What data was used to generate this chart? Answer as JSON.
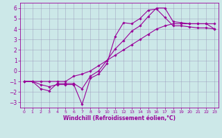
{
  "title": "",
  "xlabel": "Windchill (Refroidissement éolien,°C)",
  "background_color": "#cce8e8",
  "line_color": "#990099",
  "xlim": [
    -0.5,
    23.5
  ],
  "ylim": [
    -3.5,
    6.5
  ],
  "xticks": [
    0,
    1,
    2,
    3,
    4,
    5,
    6,
    7,
    8,
    9,
    10,
    11,
    12,
    13,
    14,
    15,
    16,
    17,
    18,
    19,
    20,
    21,
    22,
    23
  ],
  "yticks": [
    -3,
    -2,
    -1,
    0,
    1,
    2,
    3,
    4,
    5,
    6
  ],
  "line1_x": [
    0,
    1,
    2,
    3,
    4,
    5,
    6,
    7,
    8,
    9,
    10,
    11,
    12,
    13,
    14,
    15,
    16,
    17,
    18,
    19,
    20,
    21,
    22,
    23
  ],
  "line1_y": [
    -1,
    -1,
    -1.3,
    -1.5,
    -1.3,
    -1.3,
    -1.3,
    -3.2,
    -0.7,
    -0.3,
    0.7,
    3.3,
    4.6,
    4.5,
    5.0,
    5.8,
    5.9,
    5.1,
    4.3,
    4.3,
    4.2,
    4.1,
    4.1,
    4.0
  ],
  "line2_x": [
    0,
    1,
    2,
    3,
    4,
    5,
    6,
    7,
    8,
    9,
    10,
    11,
    12,
    13,
    14,
    15,
    16,
    17,
    18,
    19,
    20,
    21,
    22,
    23
  ],
  "line2_y": [
    -1,
    -1,
    -1.7,
    -1.9,
    -1.2,
    -1.2,
    -1.2,
    -1.7,
    -0.5,
    0.0,
    1.0,
    2.1,
    2.9,
    3.8,
    4.3,
    5.2,
    6.0,
    6.0,
    4.7,
    4.6,
    4.5,
    4.5,
    4.5,
    4.5
  ],
  "line3_x": [
    0,
    1,
    2,
    3,
    4,
    5,
    6,
    7,
    8,
    9,
    10,
    11,
    12,
    13,
    14,
    15,
    16,
    17,
    18,
    19,
    20,
    21,
    22,
    23
  ],
  "line3_y": [
    -1,
    -1,
    -1,
    -1,
    -1,
    -1,
    -0.5,
    -0.3,
    0.0,
    0.5,
    1.0,
    1.5,
    2.0,
    2.5,
    3.0,
    3.5,
    4.0,
    4.3,
    4.5,
    4.5,
    4.5,
    4.5,
    4.5,
    4.0
  ],
  "grid_color": "#9999bb",
  "marker": "D",
  "markersize": 1.8,
  "linewidth": 0.8,
  "tick_fontsize_x": 4.5,
  "tick_fontsize_y": 5.5,
  "xlabel_fontsize": 5.5
}
